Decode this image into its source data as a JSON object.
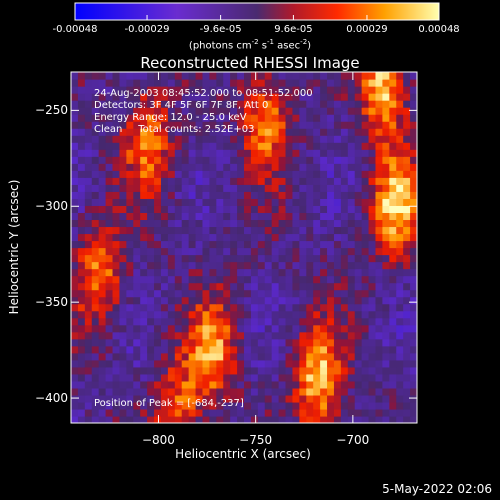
{
  "chart_data": {
    "type": "heatmap",
    "title": "Reconstructed RHESSI Image",
    "xlabel": "Heliocentric X (arcsec)",
    "ylabel": "Heliocentric Y (arcsec)",
    "xlim": [
      -845,
      -667
    ],
    "ylim": [
      -413,
      -230
    ],
    "x_ticks": [
      -800,
      -750,
      -700
    ],
    "y_ticks": [
      -250,
      -300,
      -350,
      -400
    ],
    "colorbar": {
      "ticks": [
        "-0.00048",
        "-0.00029",
        "-9.6e-05",
        "9.6e-05",
        "0.00029",
        "0.00048"
      ],
      "range": [
        -0.00048,
        0.00048
      ],
      "units_main": "(photons cm",
      "units_exp1": "-2",
      "units_mid1": " s",
      "units_exp2": "-1",
      "units_mid2": " asec",
      "units_exp3": "-2",
      "units_end": ")"
    },
    "annotations": [
      "24-Aug-2003 08:45:52.000 to 08:51:52.000",
      "Detectors: 3F 4F 5F 6F 7F 8F, Att 0",
      "Energy Range: 12.0 - 25.0 keV",
      "Clean     Total counts: 2.52E+03"
    ],
    "peak_text": "Position of Peak = [-684,-237]",
    "peak_value": 0.00048,
    "bright_sources": [
      {
        "x": -684,
        "y": -237,
        "value": 0.00048
      },
      {
        "x": -678,
        "y": -300,
        "value": 0.00045
      },
      {
        "x": -718,
        "y": -390,
        "value": 0.00044
      },
      {
        "x": -772,
        "y": -375,
        "value": 0.00038
      },
      {
        "x": -830,
        "y": -335,
        "value": 0.00036
      },
      {
        "x": -805,
        "y": -265,
        "value": 0.00034
      },
      {
        "x": -745,
        "y": -255,
        "value": 0.00035
      },
      {
        "x": -790,
        "y": -405,
        "value": 0.0003
      }
    ],
    "footer_date": "5-May-2022 02:06"
  }
}
